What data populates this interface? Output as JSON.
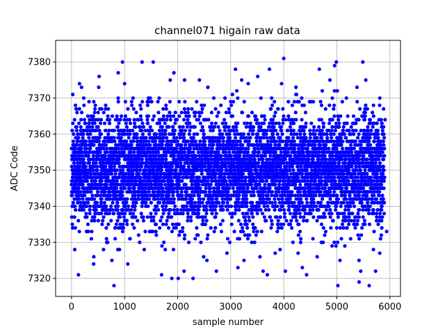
{
  "chart_data": {
    "type": "scatter",
    "title": "channel071 higain raw data",
    "xlabel": "sample number",
    "ylabel": "ADC Code",
    "xlim": [
      -300,
      6200
    ],
    "ylim": [
      7315,
      7386
    ],
    "xticks": [
      "0",
      "1000",
      "2000",
      "3000",
      "4000",
      "5000",
      "6000"
    ],
    "yticks": [
      "7320",
      "7330",
      "7340",
      "7350",
      "7360",
      "7370",
      "7380"
    ],
    "grid": true,
    "marker_color": "#0000ff",
    "series": [
      {
        "points": [
          [
            0,
            7346
          ],
          [
            20,
            7334
          ],
          [
            40,
            7355
          ],
          [
            60,
            7328
          ],
          [
            80,
            7362
          ],
          [
            100,
            7350
          ],
          [
            130,
            7321
          ],
          [
            150,
            7374
          ],
          [
            170,
            7341
          ],
          [
            200,
            7357
          ],
          [
            230,
            7370
          ],
          [
            260,
            7337
          ],
          [
            300,
            7348
          ],
          [
            340,
            7364
          ],
          [
            380,
            7333
          ],
          [
            420,
            7326
          ],
          [
            450,
            7359
          ],
          [
            480,
            7345
          ],
          [
            520,
            7376
          ],
          [
            560,
            7338
          ],
          [
            600,
            7352
          ],
          [
            640,
            7367
          ],
          [
            680,
            7330
          ],
          [
            720,
            7344
          ],
          [
            760,
            7325
          ],
          [
            800,
            7318
          ],
          [
            840,
            7356
          ],
          [
            880,
            7377
          ],
          [
            920,
            7342
          ],
          [
            960,
            7380
          ],
          [
            1000,
            7374
          ],
          [
            1030,
            7339
          ],
          [
            1060,
            7324
          ],
          [
            1100,
            7361
          ],
          [
            1140,
            7349
          ],
          [
            1180,
            7334
          ],
          [
            1220,
            7366
          ],
          [
            1260,
            7343
          ],
          [
            1300,
            7357
          ],
          [
            1330,
            7380
          ],
          [
            1370,
            7328
          ],
          [
            1410,
            7352
          ],
          [
            1450,
            7370
          ],
          [
            1490,
            7346
          ],
          [
            1540,
            7380
          ],
          [
            1580,
            7335
          ],
          [
            1620,
            7363
          ],
          [
            1660,
            7341
          ],
          [
            1700,
            7354
          ],
          [
            1740,
            7330
          ],
          [
            1780,
            7368
          ],
          [
            1820,
            7347
          ],
          [
            1860,
            7375
          ],
          [
            1890,
            7320
          ],
          [
            1930,
            7359
          ],
          [
            1970,
            7338
          ],
          [
            2010,
            7320
          ],
          [
            2050,
            7356
          ],
          [
            2090,
            7333
          ],
          [
            2130,
            7375
          ],
          [
            2170,
            7344
          ],
          [
            2210,
            7330
          ],
          [
            2250,
            7362
          ],
          [
            2290,
            7320
          ],
          [
            2330,
            7351
          ],
          [
            2370,
            7337
          ],
          [
            2410,
            7375
          ],
          [
            2450,
            7368
          ],
          [
            2490,
            7326
          ],
          [
            2530,
            7345
          ],
          [
            2570,
            7373
          ],
          [
            2610,
            7340
          ],
          [
            2650,
            7358
          ],
          [
            2690,
            7333
          ],
          [
            2730,
            7322
          ],
          [
            2770,
            7366
          ],
          [
            2810,
            7349
          ],
          [
            2850,
            7336
          ],
          [
            2890,
            7361
          ],
          [
            2930,
            7327
          ],
          [
            2970,
            7355
          ],
          [
            3010,
            7343
          ],
          [
            3050,
            7369
          ],
          [
            3090,
            7378
          ],
          [
            3130,
            7331
          ],
          [
            3170,
            7352
          ],
          [
            3210,
            7366
          ],
          [
            3250,
            7325
          ],
          [
            3290,
            7348
          ],
          [
            3330,
            7374
          ],
          [
            3370,
            7339
          ],
          [
            3410,
            7357
          ],
          [
            3450,
            7330
          ],
          [
            3490,
            7363
          ],
          [
            3530,
            7344
          ],
          [
            3570,
            7370
          ],
          [
            3610,
            7322
          ],
          [
            3650,
            7350
          ],
          [
            3690,
            7321
          ],
          [
            3730,
            7378
          ],
          [
            3770,
            7336
          ],
          [
            3810,
            7359
          ],
          [
            3850,
            7345
          ],
          [
            3890,
            7367
          ],
          [
            3930,
            7328
          ],
          [
            3970,
            7353
          ],
          [
            4000,
            7381
          ],
          [
            4030,
            7322
          ],
          [
            4070,
            7341
          ],
          [
            4110,
            7364
          ],
          [
            4150,
            7334
          ],
          [
            4190,
            7356
          ],
          [
            4230,
            7373
          ],
          [
            4270,
            7327
          ],
          [
            4310,
            7349
          ],
          [
            4350,
            7323
          ],
          [
            4390,
            7360
          ],
          [
            4430,
            7321
          ],
          [
            4470,
            7344
          ],
          [
            4510,
            7369
          ],
          [
            4550,
            7331
          ],
          [
            4590,
            7357
          ],
          [
            4630,
            7326
          ],
          [
            4670,
            7378
          ],
          [
            4710,
            7340
          ],
          [
            4750,
            7362
          ],
          [
            4790,
            7333
          ],
          [
            4830,
            7351
          ],
          [
            4870,
            7375
          ],
          [
            4910,
            7329
          ],
          [
            4950,
            7346
          ],
          [
            4990,
            7380
          ],
          [
            5020,
            7318
          ],
          [
            5060,
            7325
          ],
          [
            5100,
            7358
          ],
          [
            5140,
            7338
          ],
          [
            5180,
            7370
          ],
          [
            5220,
            7344
          ],
          [
            5260,
            7331
          ],
          [
            5300,
            7363
          ],
          [
            5340,
            7349
          ],
          [
            5380,
            7373
          ],
          [
            5420,
            7319
          ],
          [
            5450,
            7322
          ],
          [
            5490,
            7380
          ],
          [
            5530,
            7335
          ],
          [
            5570,
            7361
          ],
          [
            5610,
            7318
          ],
          [
            5650,
            7347
          ],
          [
            5690,
            7328
          ],
          [
            5730,
            7322
          ],
          [
            5770,
            7356
          ],
          [
            5810,
            7370
          ],
          [
            5850,
            7340
          ],
          [
            5880,
            7353
          ],
          [
            5910,
            7364
          ],
          [
            5940,
            7333
          ]
        ]
      }
    ]
  }
}
